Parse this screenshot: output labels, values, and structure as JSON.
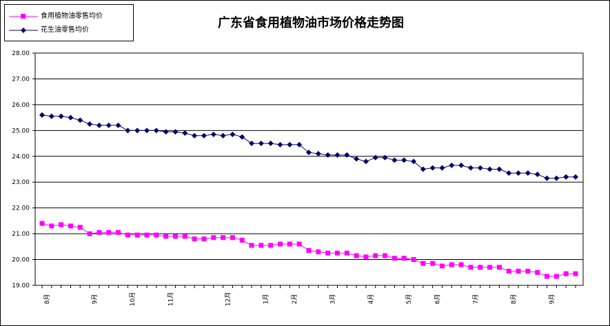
{
  "chart_data": {
    "type": "line",
    "title": "广东省食用植物油市场价格走势图",
    "xlabel": "",
    "ylabel": "",
    "ylim": [
      19.0,
      28.0
    ],
    "yticks": [
      "19.00",
      "20.00",
      "21.00",
      "22.00",
      "23.00",
      "24.00",
      "25.00",
      "26.00",
      "27.00",
      "28.00"
    ],
    "month_labels": [
      {
        "label": "8月",
        "index": 1
      },
      {
        "label": "9月",
        "index": 6
      },
      {
        "label": "10月",
        "index": 10
      },
      {
        "label": "11月",
        "index": 14
      },
      {
        "label": "12月",
        "index": 20
      },
      {
        "label": "1月",
        "index": 24
      },
      {
        "label": "2月",
        "index": 27
      },
      {
        "label": "3月",
        "index": 31
      },
      {
        "label": "4月",
        "index": 35
      },
      {
        "label": "5月",
        "index": 39
      },
      {
        "label": "6月",
        "index": 42
      },
      {
        "label": "7月",
        "index": 46
      },
      {
        "label": "8月",
        "index": 50
      },
      {
        "label": "9月",
        "index": 54
      }
    ],
    "grid": "horizontal",
    "legend": "top-left",
    "series": [
      {
        "name": "食用植物油零售均价",
        "color": "#ff00ff",
        "marker": "square",
        "values": [
          21.4,
          21.3,
          21.35,
          21.3,
          21.25,
          21.0,
          21.05,
          21.05,
          21.05,
          20.95,
          20.95,
          20.95,
          20.95,
          20.9,
          20.9,
          20.9,
          20.8,
          20.8,
          20.85,
          20.85,
          20.85,
          20.75,
          20.55,
          20.55,
          20.55,
          20.6,
          20.6,
          20.6,
          20.35,
          20.3,
          20.25,
          20.25,
          20.25,
          20.15,
          20.1,
          20.15,
          20.15,
          20.05,
          20.05,
          20.0,
          19.85,
          19.85,
          19.75,
          19.8,
          19.8,
          19.7,
          19.7,
          19.7,
          19.7,
          19.55,
          19.55,
          19.55,
          19.5,
          19.35,
          19.35,
          19.45,
          19.45
        ]
      },
      {
        "name": "花生油零售均价",
        "color": "#000066",
        "marker": "diamond",
        "values": [
          25.6,
          25.55,
          25.55,
          25.5,
          25.4,
          25.25,
          25.2,
          25.2,
          25.2,
          25.0,
          25.0,
          25.0,
          25.0,
          24.95,
          24.95,
          24.9,
          24.8,
          24.8,
          24.85,
          24.8,
          24.85,
          24.75,
          24.5,
          24.5,
          24.5,
          24.45,
          24.45,
          24.45,
          24.15,
          24.1,
          24.05,
          24.05,
          24.05,
          23.9,
          23.8,
          23.95,
          23.95,
          23.85,
          23.85,
          23.8,
          23.5,
          23.55,
          23.55,
          23.65,
          23.65,
          23.55,
          23.55,
          23.5,
          23.5,
          23.35,
          23.35,
          23.35,
          23.3,
          23.15,
          23.15,
          23.2,
          23.2
        ]
      }
    ]
  }
}
